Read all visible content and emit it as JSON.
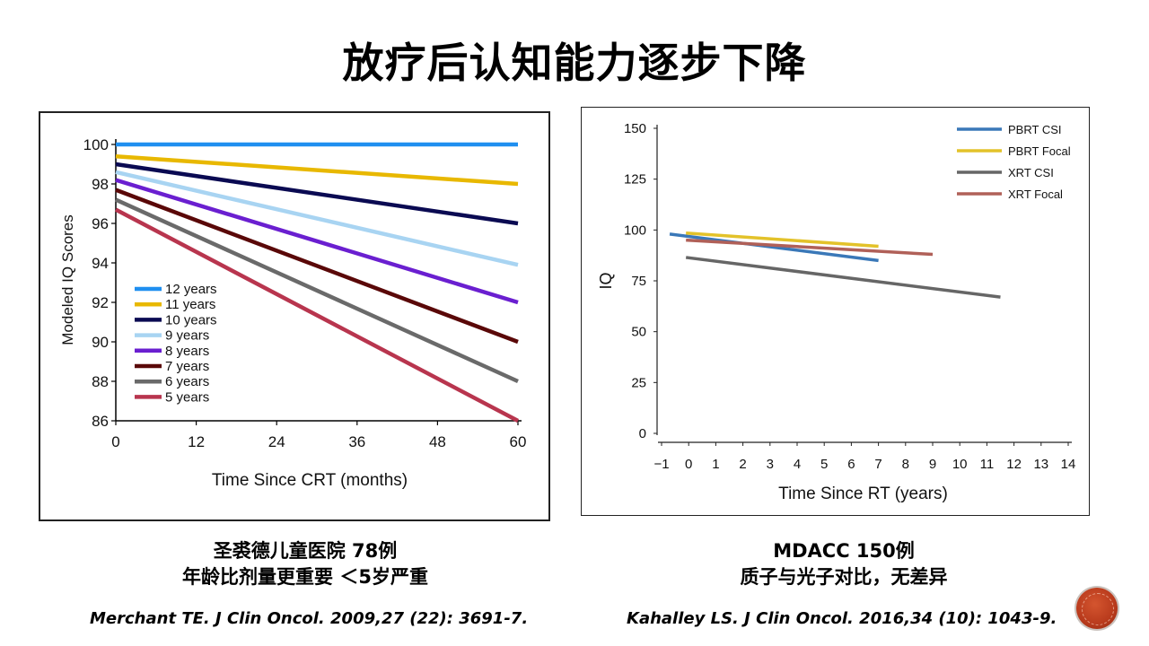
{
  "slide": {
    "title": "放疗后认知能力逐步下降",
    "left_caption_line1": "圣裘德儿童医院  78例",
    "left_caption_line2": "年龄比剂量更重要  ＜5岁严重",
    "right_caption_line1": "MDACC  150例",
    "right_caption_line2": "质子与光子对比，无差异",
    "left_citation": "Merchant TE. J Clin Oncol. 2009,27 (22): 3691-7.",
    "right_citation": "Kahalley LS. J Clin Oncol. 2016,34 (10): 1043-9."
  },
  "chart_data": [
    {
      "type": "line",
      "xlabel": "Time Since CRT (months)",
      "ylabel": "Modeled IQ Scores",
      "xlim": [
        0,
        60
      ],
      "ylim": [
        86,
        100
      ],
      "xticks": [
        0,
        12,
        24,
        36,
        48,
        60
      ],
      "yticks": [
        86,
        88,
        90,
        92,
        94,
        96,
        98,
        100
      ],
      "grid": false,
      "legend_position": "bottom-left",
      "series": [
        {
          "name": "12 years",
          "color": "#1f8ff0",
          "x": [
            0,
            60
          ],
          "y": [
            100,
            100
          ]
        },
        {
          "name": "11 years",
          "color": "#e8b800",
          "x": [
            0,
            60
          ],
          "y": [
            99.4,
            98.0
          ]
        },
        {
          "name": "10 years",
          "color": "#0a0a52",
          "x": [
            0,
            60
          ],
          "y": [
            99.0,
            96.0
          ]
        },
        {
          "name": "9 years",
          "color": "#a8d4f2",
          "x": [
            0,
            60
          ],
          "y": [
            98.6,
            93.9
          ]
        },
        {
          "name": "8 years",
          "color": "#6a1fd0",
          "x": [
            0,
            60
          ],
          "y": [
            98.2,
            92.0
          ]
        },
        {
          "name": "7 years",
          "color": "#5a0808",
          "x": [
            0,
            60
          ],
          "y": [
            97.7,
            90.0
          ]
        },
        {
          "name": "6 years",
          "color": "#6a6a6a",
          "x": [
            0,
            60
          ],
          "y": [
            97.2,
            88.0
          ]
        },
        {
          "name": "5 years",
          "color": "#b8354e",
          "x": [
            0,
            60
          ],
          "y": [
            96.7,
            86.0
          ]
        }
      ]
    },
    {
      "type": "line",
      "xlabel": "Time Since RT (years)",
      "ylabel": "IQ",
      "xlim": [
        -1,
        14
      ],
      "ylim": [
        0,
        150
      ],
      "xticks": [
        -1,
        0,
        1,
        2,
        3,
        4,
        5,
        6,
        7,
        8,
        9,
        10,
        11,
        12,
        13,
        14
      ],
      "xtick_labels": [
        "−1",
        "0",
        "1",
        "2",
        "3",
        "4",
        "5",
        "6",
        "7",
        "8",
        "9",
        "10",
        "11",
        "12",
        "13",
        "14"
      ],
      "yticks": [
        0,
        25,
        50,
        75,
        100,
        125,
        150
      ],
      "grid": false,
      "legend_position": "top-right",
      "series": [
        {
          "name": "PBRT CSI",
          "color": "#3a78b8",
          "x": [
            -0.7,
            7
          ],
          "y": [
            98,
            85
          ]
        },
        {
          "name": "PBRT Focal",
          "color": "#e3c22a",
          "x": [
            -0.1,
            7
          ],
          "y": [
            98.5,
            92
          ]
        },
        {
          "name": "XRT CSI",
          "color": "#666666",
          "x": [
            -0.1,
            11.5
          ],
          "y": [
            86.5,
            67
          ]
        },
        {
          "name": "XRT Focal",
          "color": "#b06058",
          "x": [
            -0.1,
            9
          ],
          "y": [
            95,
            88
          ]
        }
      ]
    }
  ]
}
